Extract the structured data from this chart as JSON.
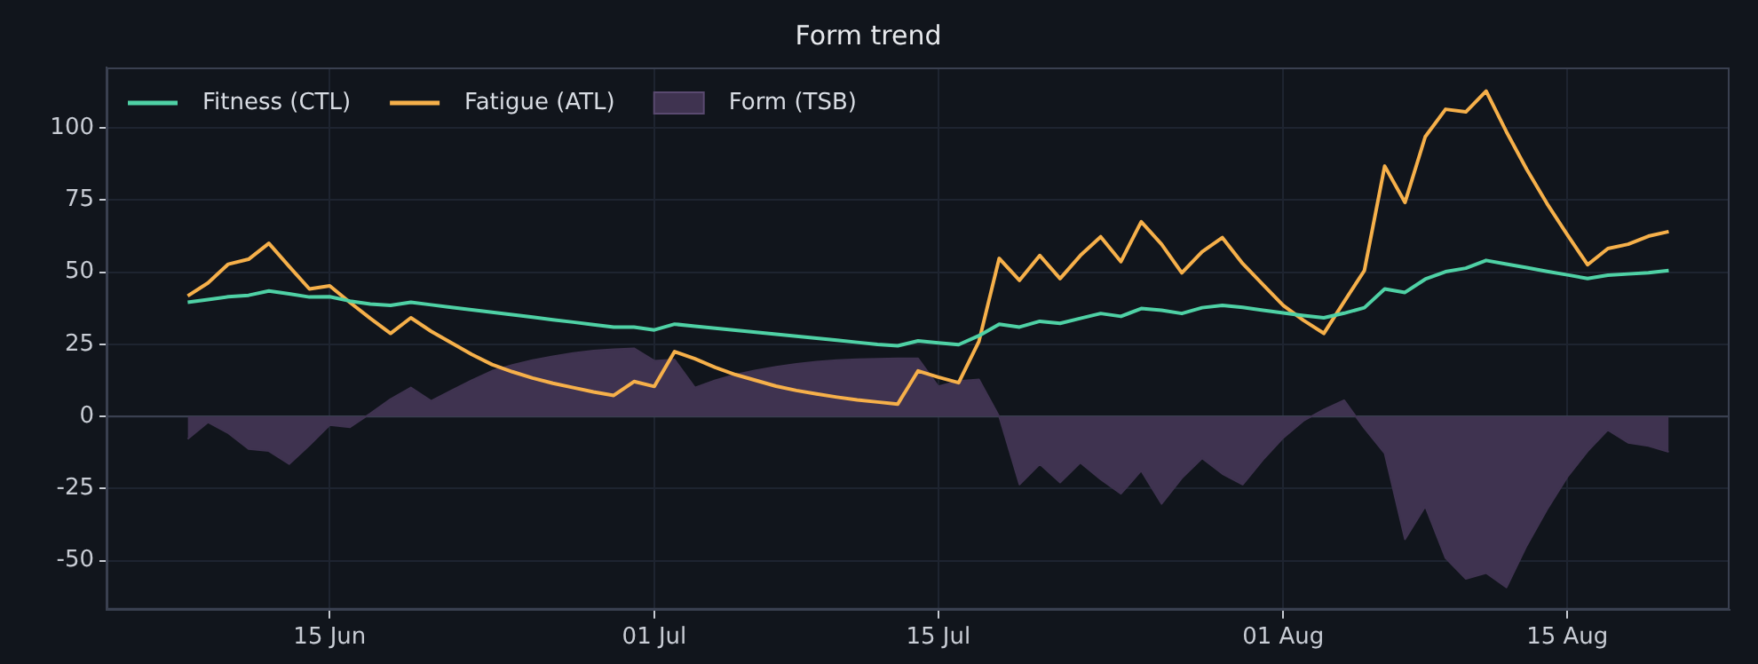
{
  "chart_data": {
    "type": "line",
    "title": "Form trend",
    "x": [
      "--06-08",
      "--06-09",
      "--06-10",
      "--06-11",
      "--06-12",
      "--06-13",
      "--06-14",
      "--06-15",
      "--06-16",
      "--06-17",
      "--06-18",
      "--06-19",
      "--06-20",
      "--06-21",
      "--06-22",
      "--06-23",
      "--06-24",
      "--06-25",
      "--06-26",
      "--06-27",
      "--06-28",
      "--06-29",
      "--06-30",
      "--07-01",
      "--07-02",
      "--07-03",
      "--07-04",
      "--07-05",
      "--07-06",
      "--07-07",
      "--07-08",
      "--07-09",
      "--07-10",
      "--07-11",
      "--07-12",
      "--07-13",
      "--07-14",
      "--07-15",
      "--07-16",
      "--07-17",
      "--07-18",
      "--07-19",
      "--07-20",
      "--07-21",
      "--07-22",
      "--07-23",
      "--07-24",
      "--07-25",
      "--07-26",
      "--07-27",
      "--07-28",
      "--07-29",
      "--07-30",
      "--07-31",
      "--08-01",
      "--08-02",
      "--08-03",
      "--08-04",
      "--08-05",
      "--08-06",
      "--08-07",
      "--08-08",
      "--08-09",
      "--08-10",
      "--08-11",
      "--08-12",
      "--08-13",
      "--08-14",
      "--08-15",
      "--08-16",
      "--08-17",
      "--08-18",
      "--08-19",
      "--08-20"
    ],
    "series": [
      {
        "name": "Fitness (CTL)",
        "color": "#4fd1a5",
        "values": [
          39.6,
          40.5,
          41.5,
          42,
          43.5,
          42.5,
          41.4,
          41.5,
          40,
          39,
          38.5,
          39.6,
          38.7,
          37.8,
          37,
          36.1,
          35.3,
          34.4,
          33.5,
          32.7,
          31.8,
          31,
          31,
          30,
          32,
          31.3,
          30.6,
          29.9,
          29.2,
          28.5,
          27.8,
          27.1,
          26.4,
          25.7,
          25,
          24.5,
          26.2,
          25.5,
          24.9,
          28,
          32,
          31,
          33,
          32.3,
          34,
          35.7,
          34.7,
          37.4,
          36.8,
          35.7,
          37.7,
          38.5,
          37.8,
          36.8,
          35.9,
          35,
          34.2,
          35.8,
          37.7,
          44.2,
          43,
          47.6,
          50.2,
          51.4,
          54.1,
          52.8,
          51.6,
          50.3,
          49.1,
          47.8,
          49,
          49.4,
          49.8,
          50.6
        ]
      },
      {
        "name": "Fatigue (ATL)",
        "color": "#f6b04a",
        "values": [
          41.8,
          46.3,
          52.8,
          54.5,
          60,
          52,
          44.2,
          45.3,
          39.5,
          34,
          28.8,
          34.2,
          29.5,
          25.5,
          21.5,
          18,
          15.5,
          13.3,
          11.5,
          10,
          8.5,
          7.3,
          12.1,
          10.4,
          22.5,
          20,
          17,
          14.5,
          12.5,
          10.5,
          9,
          7.8,
          6.7,
          5.7,
          5,
          4.3,
          15.8,
          13.6,
          11.7,
          26,
          54.8,
          47.2,
          55.8,
          47.8,
          55.8,
          62.3,
          53.7,
          67.5,
          59.7,
          49.8,
          57.1,
          62,
          53,
          45.7,
          38.5,
          33.3,
          28.8,
          39.8,
          50.6,
          86.8,
          74.2,
          97,
          106.5,
          105.6,
          112.8,
          98.7,
          85.7,
          73.8,
          63,
          52.6,
          58.2,
          59.7,
          62.5,
          64.1
        ]
      },
      {
        "name": "Form (TSB)",
        "type": "area",
        "color": "#3f3350",
        "values": [
          -7.8,
          -2,
          -5.8,
          -11.3,
          -12,
          -16.5,
          -10,
          -3,
          -3.7,
          1,
          6,
          10,
          5.4,
          9,
          12.5,
          15.8,
          17.8,
          19.5,
          20.8,
          22,
          22.8,
          23.3,
          23.6,
          19.3,
          19.7,
          10,
          12.5,
          14.5,
          16,
          17.2,
          18.2,
          19,
          19.5,
          19.8,
          20,
          20.1,
          20.1,
          10.4,
          12.3,
          12.8,
          0,
          -23.6,
          -16.5,
          -22.9,
          -16,
          -21.8,
          -26.8,
          -18.8,
          -30.3,
          -21.4,
          -14.5,
          -19.9,
          -23.6,
          -15,
          -7.4,
          -1.5,
          2.4,
          5.6,
          -4.1,
          -12.8,
          -42.6,
          -31.2,
          -49.1,
          -56.3,
          -54.3,
          -59.3,
          -44.8,
          -32.3,
          -21,
          -12.1,
          -4.7,
          -9.1,
          -10.2,
          -12.3
        ]
      }
    ],
    "xlim": [
      "--06-04",
      "--08-23"
    ],
    "xticks": [
      {
        "value": "--06-15",
        "label": "15 Jun"
      },
      {
        "value": "--07-01",
        "label": "01 Jul"
      },
      {
        "value": "--07-15",
        "label": "15 Jul"
      },
      {
        "value": "--08-01",
        "label": "01 Aug"
      },
      {
        "value": "--08-15",
        "label": "15 Aug"
      }
    ],
    "ylim": [
      -67,
      121
    ],
    "yticks": [
      -50,
      -25,
      0,
      25,
      50,
      75,
      100
    ],
    "ref_lines": [
      {
        "axis": "y",
        "value": 0,
        "color": "#3a4050"
      }
    ],
    "grid": true,
    "legend": "top left"
  }
}
